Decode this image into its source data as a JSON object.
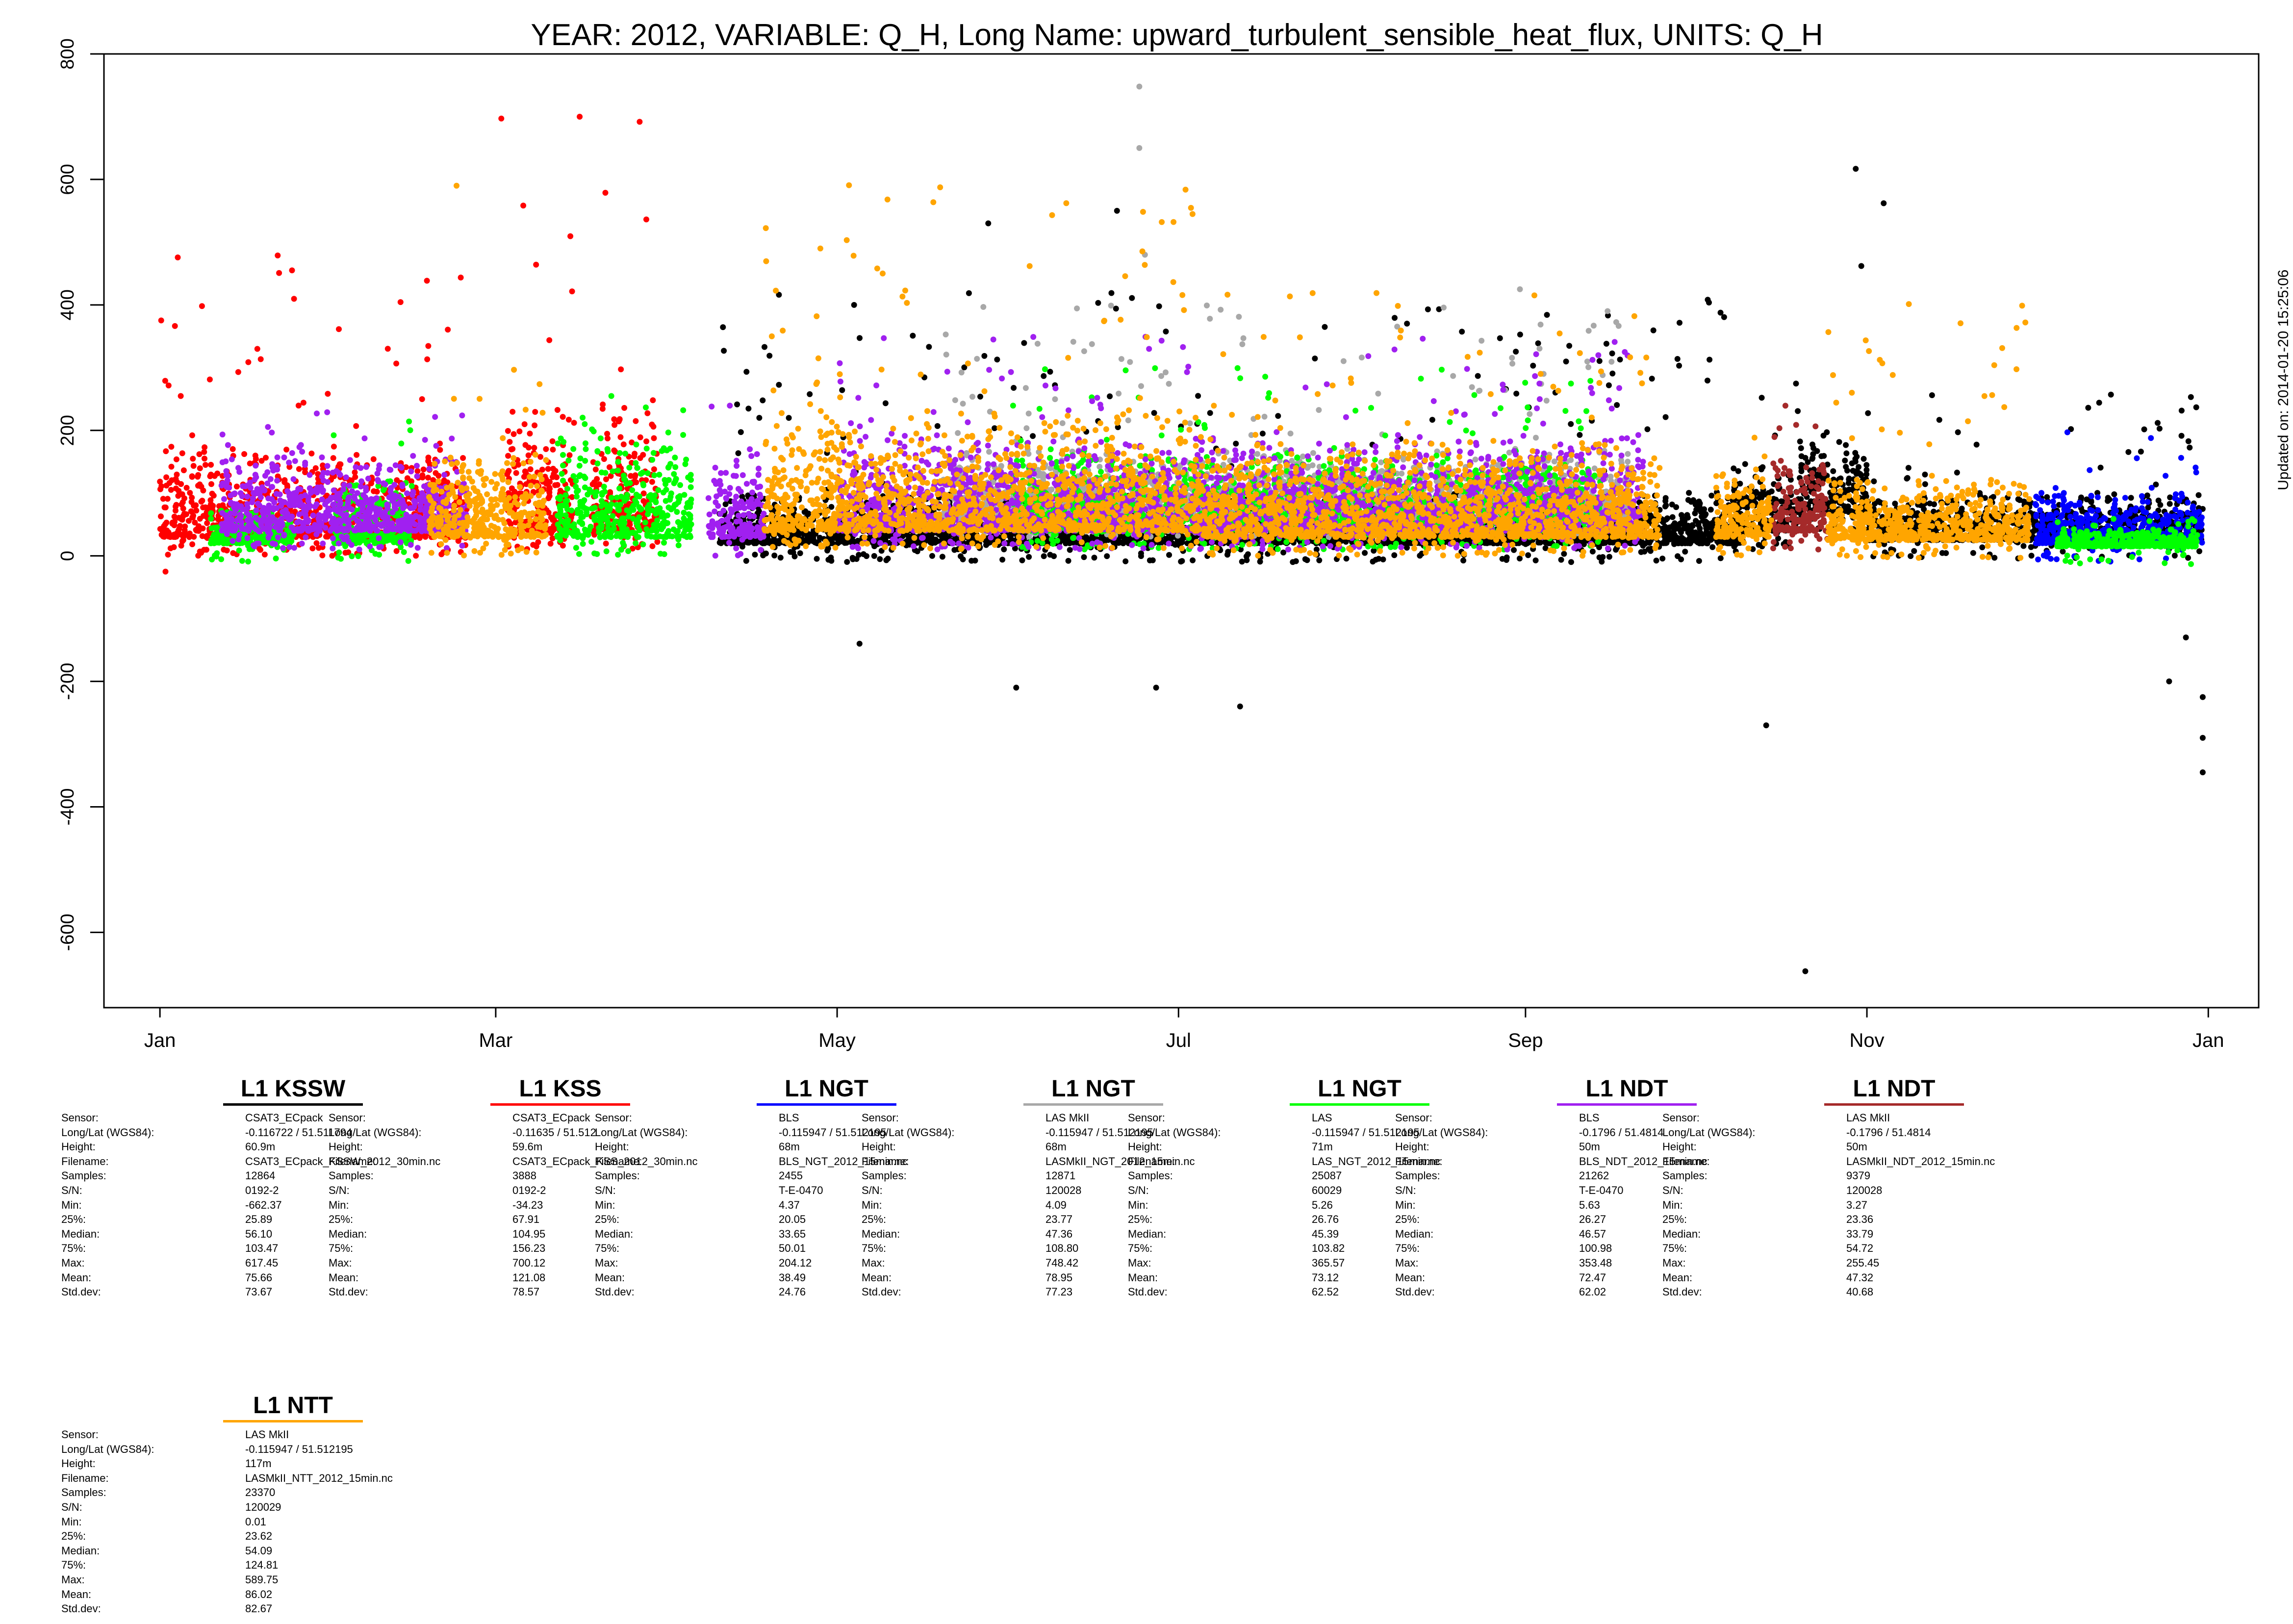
{
  "chart_data": {
    "type": "scatter",
    "title": "YEAR: 2012, VARIABLE: Q_H, Long Name: upward_turbulent_sensible_heat_flux, UNITS: Q_H",
    "xlabel": "",
    "ylabel": "",
    "xlim": [
      "2011-12-22",
      "2013-01-10"
    ],
    "ylim": [
      -720,
      800
    ],
    "x_ticks": [
      {
        "label": "Jan",
        "date": "2012-01-01"
      },
      {
        "label": "Mar",
        "date": "2012-03-01"
      },
      {
        "label": "May",
        "date": "2012-05-01"
      },
      {
        "label": "Jul",
        "date": "2012-07-01"
      },
      {
        "label": "Sep",
        "date": "2012-09-01"
      },
      {
        "label": "Nov",
        "date": "2012-11-01"
      },
      {
        "label": "Jan",
        "date": "2013-01-01"
      }
    ],
    "y_ticks": [
      800,
      600,
      400,
      200,
      0,
      -200,
      -400,
      -600
    ],
    "grid": false,
    "legend_placement": "bottom",
    "series": [
      {
        "color": "#000000",
        "segments": [
          {
            "start": "2012-04-10",
            "end": "2012-10-10",
            "base": 20,
            "spread": 60,
            "peak": 420
          },
          {
            "start": "2012-10-08",
            "end": "2012-10-20",
            "base": 40,
            "spread": 80,
            "peak": 300
          },
          {
            "start": "2012-11-01",
            "end": "2012-12-31",
            "base": 25,
            "spread": 55,
            "peak": 260
          },
          {
            "start": "2012-10-20",
            "end": "2012-11-01",
            "base": 70,
            "spread": 90,
            "peak": 200
          }
        ],
        "points": [
          [
            "2012-10-21",
            -662
          ],
          [
            "2012-10-30",
            617
          ],
          [
            "2012-11-04",
            562
          ],
          [
            "2012-10-31",
            462
          ],
          [
            "2012-12-31",
            -345
          ],
          [
            "2012-12-31",
            -290
          ],
          [
            "2012-12-31",
            -225
          ],
          [
            "2012-12-25",
            -200
          ],
          [
            "2012-12-28",
            -130
          ],
          [
            "2012-10-14",
            -270
          ],
          [
            "2012-06-27",
            -210
          ],
          [
            "2012-06-02",
            -210
          ],
          [
            "2012-07-12",
            -240
          ],
          [
            "2012-05-05",
            -140
          ],
          [
            "2012-06-20",
            550
          ],
          [
            "2012-05-28",
            530
          ]
        ]
      },
      {
        "color": "#ff0000",
        "segments": [
          {
            "start": "2012-01-01",
            "end": "2012-02-25",
            "base": 30,
            "spread": 110,
            "peak": 480
          },
          {
            "start": "2012-03-03",
            "end": "2012-03-15",
            "base": 40,
            "spread": 140,
            "peak": 560
          },
          {
            "start": "2012-03-18",
            "end": "2012-03-30",
            "base": 40,
            "spread": 150,
            "peak": 700
          }
        ],
        "points": [
          [
            "2012-03-02",
            697
          ],
          [
            "2012-03-16",
            700
          ],
          [
            "2012-01-02",
            -25
          ]
        ]
      },
      {
        "color": "#0000ff",
        "segments": [
          {
            "start": "2012-12-01",
            "end": "2012-12-31",
            "base": 20,
            "spread": 60,
            "peak": 200
          }
        ],
        "points": []
      },
      {
        "color": "#a8a8a8",
        "segments": [
          {
            "start": "2012-05-20",
            "end": "2012-09-20",
            "base": 60,
            "spread": 80,
            "peak": 400
          }
        ],
        "points": [
          [
            "2012-06-24",
            748
          ],
          [
            "2012-06-24",
            650
          ],
          [
            "2012-06-25",
            480
          ],
          [
            "2012-08-31",
            425
          ]
        ]
      },
      {
        "color": "#00ff00",
        "segments": [
          {
            "start": "2012-01-10",
            "end": "2012-01-25",
            "base": 20,
            "spread": 40,
            "peak": 80
          },
          {
            "start": "2012-02-01",
            "end": "2012-02-15",
            "base": 20,
            "spread": 80,
            "peak": 220
          },
          {
            "start": "2012-03-12",
            "end": "2012-04-05",
            "base": 30,
            "spread": 110,
            "peak": 260
          },
          {
            "start": "2012-06-01",
            "end": "2012-09-15",
            "base": 40,
            "spread": 90,
            "peak": 300
          },
          {
            "start": "2012-12-05",
            "end": "2012-12-30",
            "base": 15,
            "spread": 20,
            "peak": 60
          }
        ],
        "points": []
      },
      {
        "color": "#a020f0",
        "segments": [
          {
            "start": "2012-01-12",
            "end": "2012-02-25",
            "base": 40,
            "spread": 90,
            "peak": 240
          },
          {
            "start": "2012-04-08",
            "end": "2012-04-18",
            "base": 30,
            "spread": 90,
            "peak": 240
          },
          {
            "start": "2012-05-01",
            "end": "2012-09-22",
            "base": 40,
            "spread": 110,
            "peak": 350
          }
        ],
        "points": []
      },
      {
        "color": "#a52a2a",
        "segments": [
          {
            "start": "2012-10-15",
            "end": "2012-10-25",
            "base": 40,
            "spread": 80,
            "peak": 240
          }
        ],
        "points": []
      },
      {
        "color": "#ffa500",
        "segments": [
          {
            "start": "2012-02-18",
            "end": "2012-03-10",
            "base": 30,
            "spread": 100,
            "peak": 300
          },
          {
            "start": "2012-04-18",
            "end": "2012-07-05",
            "base": 40,
            "spread": 140,
            "peak": 600
          },
          {
            "start": "2012-07-05",
            "end": "2012-09-25",
            "base": 30,
            "spread": 110,
            "peak": 420
          },
          {
            "start": "2012-10-05",
            "end": "2012-10-15",
            "base": 30,
            "spread": 80,
            "peak": 200
          },
          {
            "start": "2012-10-25",
            "end": "2012-11-30",
            "base": 25,
            "spread": 70,
            "peak": 410
          }
        ],
        "points": [
          [
            "2012-02-23",
            590
          ],
          [
            "2012-05-10",
            568
          ],
          [
            "2012-04-28",
            490
          ],
          [
            "2012-06-28",
            532
          ]
        ]
      }
    ]
  },
  "side_note": "Updated on: 2014-01-20 15:25:06",
  "legend_keys": [
    "Sensor:",
    "Long/Lat (WGS84):",
    "Height:",
    "Filename:",
    "Samples:",
    "S/N:",
    "Min:",
    "25%:",
    "Median:",
    "75%:",
    "Max:",
    "Mean:",
    "Std.dev:"
  ],
  "legends": [
    {
      "title": "L1 KSSW",
      "color": "#000000",
      "values": [
        "CSAT3_ECpack",
        " -0.116722 / 51.511794",
        "60.9m",
        "CSAT3_ECpack_KSSW_2012_30min.nc",
        "12864",
        "0192-2",
        "-662.37",
        "25.89",
        "56.10",
        "103.47",
        "617.45",
        "75.66",
        "73.67"
      ]
    },
    {
      "title": "L1 KSS",
      "color": "#ff0000",
      "values": [
        "CSAT3_ECpack",
        " -0.11635 / 51.512",
        "59.6m",
        "CSAT3_ECpack_KSS_2012_30min.nc",
        "3888",
        "0192-2",
        "-34.23",
        "67.91",
        "104.95",
        "156.23",
        "700.12",
        "121.08",
        "78.57"
      ]
    },
    {
      "title": "L1 NGT",
      "color": "#0000ff",
      "values": [
        "BLS",
        " -0.115947 / 51.512195",
        "68m",
        "BLS_NGT_2012_15min.nc",
        "2455",
        "T-E-0470",
        "4.37",
        "20.05",
        "33.65",
        "50.01",
        "204.12",
        "38.49",
        "24.76"
      ]
    },
    {
      "title": "L1 NGT",
      "color": "#a8a8a8",
      "values": [
        "LAS MkII",
        " -0.115947 / 51.512195",
        "68m",
        "LASMkII_NGT_2012_15min.nc",
        "12871",
        "120028",
        "4.09",
        "23.77",
        "47.36",
        "108.80",
        "748.42",
        "78.95",
        "77.23"
      ]
    },
    {
      "title": "L1 NGT",
      "color": "#00ff00",
      "values": [
        "LAS",
        " -0.115947 / 51.512195",
        "71m",
        "LAS_NGT_2012_15min.nc",
        "25087",
        "60029",
        "5.26",
        "26.76",
        "45.39",
        "103.82",
        "365.57",
        "73.12",
        "62.52"
      ]
    },
    {
      "title": "L1 NDT",
      "color": "#a020f0",
      "values": [
        "BLS",
        " -0.1796 / 51.4814",
        "50m",
        "BLS_NDT_2012_15min.nc",
        "21262",
        "T-E-0470",
        "5.63",
        "26.27",
        "46.57",
        "100.98",
        "353.48",
        "72.47",
        "62.02"
      ]
    },
    {
      "title": "L1 NDT",
      "color": "#a52a2a",
      "values": [
        "LAS MkII",
        " -0.1796 / 51.4814",
        "50m",
        "LASMkII_NDT_2012_15min.nc",
        "9379",
        "120028",
        "3.27",
        "23.36",
        "33.79",
        "54.72",
        "255.45",
        "47.32",
        "40.68"
      ]
    },
    {
      "title": "L1 NTT",
      "color": "#ffa500",
      "values": [
        "LAS MkII",
        " -0.115947 / 51.512195",
        "117m",
        "LASMkII_NTT_2012_15min.nc",
        "23370",
        "120029",
        "0.01",
        "23.62",
        "54.09",
        "124.81",
        "589.75",
        "86.02",
        "82.67"
      ]
    }
  ]
}
